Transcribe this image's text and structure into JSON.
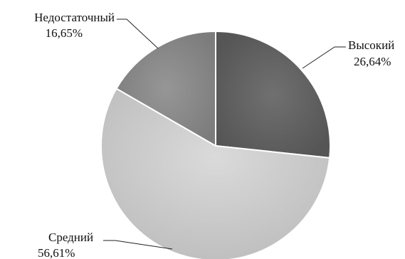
{
  "chart_data": {
    "type": "pie",
    "title": "",
    "slices": [
      {
        "label": "Высокий",
        "value": 26.64,
        "value_text": "26,64%",
        "color": "#606060"
      },
      {
        "label": "Средний",
        "value": 56.61,
        "value_text": "56,61%",
        "color": "#c6c6c6"
      },
      {
        "label": "Недостаточный",
        "value": 16.65,
        "value_text": "16,65%",
        "color": "#8a8a8a"
      }
    ],
    "start_angle": "12 o'clock",
    "direction": "clockwise",
    "legend": "none",
    "data_labels": "outside with leader lines"
  }
}
